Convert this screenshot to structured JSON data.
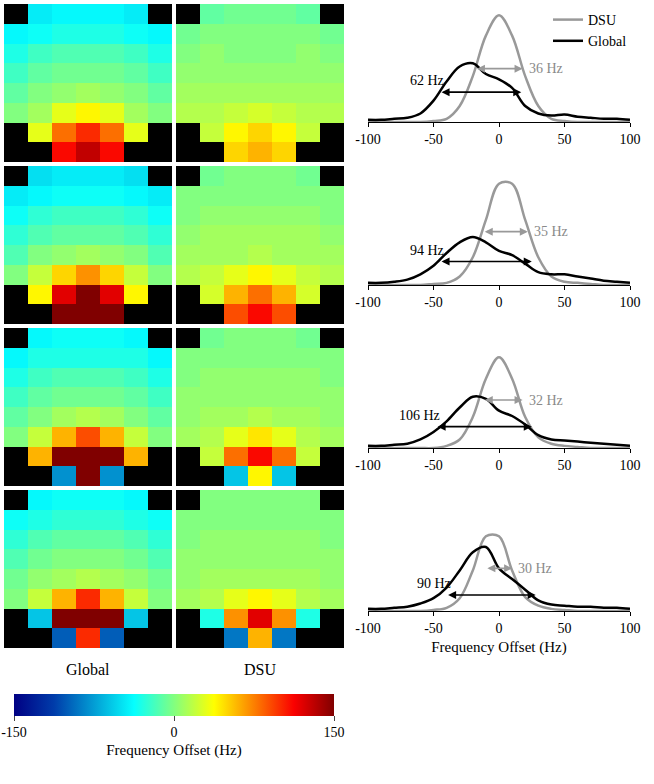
{
  "chart_data": [
    {
      "type": "heatmap",
      "columns": [
        "Global",
        "DSU"
      ],
      "tick_labels": false,
      "colorbar": {
        "title": "Frequency Offset (Hz)",
        "range": [
          -150,
          150
        ],
        "ticks": [
          -150,
          0,
          150
        ]
      },
      "cells": [
        [
          [
            [
              null,
              -45,
              -40,
              -40,
              -40,
              -45,
              null
            ],
            [
              -40,
              -35,
              -30,
              -30,
              -30,
              -35,
              -40
            ],
            [
              -30,
              -20,
              -15,
              -15,
              -15,
              -20,
              -30
            ],
            [
              -20,
              -10,
              -5,
              -5,
              -5,
              -10,
              -20
            ],
            [
              -10,
              0,
              5,
              10,
              5,
              0,
              -10
            ],
            [
              0,
              10,
              30,
              40,
              30,
              10,
              0
            ],
            [
              null,
              30,
              80,
              100,
              80,
              30,
              null
            ],
            [
              null,
              null,
              110,
              130,
              110,
              null,
              null
            ]
          ],
          [
            [
              null,
              -10,
              -5,
              -5,
              -5,
              -10,
              null
            ],
            [
              -5,
              0,
              0,
              0,
              0,
              0,
              -5
            ],
            [
              0,
              5,
              0,
              0,
              0,
              5,
              0
            ],
            [
              5,
              5,
              5,
              5,
              5,
              5,
              5
            ],
            [
              10,
              10,
              10,
              10,
              10,
              10,
              10
            ],
            [
              15,
              15,
              20,
              25,
              20,
              15,
              15
            ],
            [
              null,
              20,
              40,
              50,
              40,
              20,
              null
            ],
            [
              null,
              null,
              50,
              60,
              50,
              null,
              null
            ]
          ]
        ],
        [
          [
            [
              null,
              -50,
              -45,
              -45,
              -45,
              -50,
              null
            ],
            [
              -45,
              -40,
              -35,
              -35,
              -35,
              -40,
              -45
            ],
            [
              -35,
              -25,
              -20,
              -20,
              -20,
              -25,
              -35
            ],
            [
              -25,
              -15,
              -10,
              -10,
              -10,
              -15,
              -25
            ],
            [
              -15,
              0,
              5,
              10,
              5,
              0,
              -15
            ],
            [
              0,
              20,
              50,
              70,
              50,
              20,
              0
            ],
            [
              null,
              40,
              120,
              150,
              120,
              40,
              null
            ],
            [
              null,
              null,
              150,
              150,
              150,
              null,
              null
            ]
          ],
          [
            [
              null,
              -5,
              0,
              0,
              0,
              -5,
              null
            ],
            [
              0,
              0,
              0,
              0,
              0,
              0,
              0
            ],
            [
              0,
              5,
              5,
              5,
              5,
              5,
              0
            ],
            [
              5,
              10,
              10,
              10,
              10,
              10,
              5
            ],
            [
              10,
              10,
              10,
              15,
              10,
              10,
              10
            ],
            [
              15,
              20,
              30,
              40,
              30,
              20,
              15
            ],
            [
              null,
              25,
              60,
              80,
              60,
              25,
              null
            ],
            [
              null,
              null,
              90,
              110,
              90,
              null,
              null
            ]
          ]
        ],
        [
          [
            [
              null,
              -40,
              -35,
              -35,
              -35,
              -40,
              null
            ],
            [
              -40,
              -30,
              -30,
              -30,
              -30,
              -30,
              -40
            ],
            [
              -30,
              -20,
              -15,
              -15,
              -15,
              -20,
              -30
            ],
            [
              -20,
              -10,
              -5,
              -5,
              -5,
              -10,
              -20
            ],
            [
              -10,
              0,
              10,
              15,
              10,
              0,
              -10
            ],
            [
              0,
              20,
              60,
              90,
              60,
              20,
              0
            ],
            [
              null,
              60,
              150,
              150,
              150,
              60,
              null
            ],
            [
              null,
              null,
              -80,
              150,
              -80,
              null,
              null
            ]
          ],
          [
            [
              null,
              -5,
              0,
              0,
              0,
              -5,
              null
            ],
            [
              0,
              0,
              0,
              0,
              0,
              0,
              0
            ],
            [
              0,
              5,
              5,
              5,
              5,
              5,
              0
            ],
            [
              5,
              5,
              5,
              5,
              5,
              5,
              5
            ],
            [
              5,
              10,
              10,
              15,
              10,
              10,
              5
            ],
            [
              10,
              15,
              30,
              45,
              30,
              15,
              10
            ],
            [
              null,
              20,
              80,
              110,
              80,
              20,
              null
            ],
            [
              null,
              null,
              -60,
              40,
              -60,
              null,
              null
            ]
          ]
        ],
        [
          [
            [
              null,
              -40,
              -35,
              -35,
              -35,
              -40,
              null
            ],
            [
              -35,
              -30,
              -25,
              -25,
              -25,
              -30,
              -35
            ],
            [
              -25,
              -15,
              -10,
              -10,
              -10,
              -15,
              -25
            ],
            [
              -15,
              -5,
              0,
              0,
              0,
              -5,
              -15
            ],
            [
              -5,
              5,
              10,
              15,
              10,
              5,
              -5
            ],
            [
              0,
              20,
              60,
              100,
              60,
              20,
              0
            ],
            [
              null,
              -60,
              150,
              150,
              150,
              -60,
              null
            ],
            [
              null,
              null,
              -100,
              100,
              -100,
              null,
              null
            ]
          ],
          [
            [
              null,
              0,
              0,
              0,
              0,
              0,
              null
            ],
            [
              0,
              0,
              0,
              0,
              0,
              0,
              0
            ],
            [
              0,
              5,
              5,
              5,
              5,
              5,
              0
            ],
            [
              5,
              5,
              5,
              5,
              5,
              5,
              5
            ],
            [
              5,
              10,
              10,
              10,
              10,
              10,
              5
            ],
            [
              10,
              15,
              30,
              40,
              30,
              15,
              10
            ],
            [
              null,
              -30,
              70,
              120,
              70,
              -30,
              null
            ],
            [
              null,
              null,
              -90,
              60,
              -90,
              null,
              null
            ]
          ]
        ]
      ]
    },
    {
      "type": "line",
      "xlabel": "Frequency Offset (Hz)",
      "x": [
        -100,
        -90,
        -80,
        -70,
        -60,
        -50,
        -40,
        -30,
        -20,
        -10,
        0,
        10,
        20,
        30,
        40,
        50,
        60,
        70,
        80,
        90,
        100
      ],
      "xlim": [
        -100,
        100
      ],
      "xticks": [
        -100,
        -50,
        0,
        50,
        100
      ],
      "ylim": [
        0,
        1.05
      ],
      "tick_labels": "x",
      "legend": "top right",
      "panels": [
        {
          "series": [
            {
              "name": "DSU",
              "color": "#999999",
              "values": [
                0,
                0,
                0,
                0,
                0,
                0.01,
                0.03,
                0.15,
                0.43,
                0.81,
                1,
                0.81,
                0.43,
                0.15,
                0.03,
                0.01,
                0,
                0,
                0,
                0,
                0
              ]
            },
            {
              "name": "Global",
              "color": "#000000",
              "values": [
                0.02,
                0.02,
                0.03,
                0.04,
                0.08,
                0.2,
                0.38,
                0.52,
                0.55,
                0.45,
                0.4,
                0.32,
                0.15,
                0.08,
                0.06,
                0.07,
                0.05,
                0.04,
                0.03,
                0.03,
                0.02
              ]
            }
          ],
          "annotations": [
            {
              "series": "Global",
              "text": "62 Hz",
              "x0": -45,
              "x1": 17,
              "y": 0.28
            },
            {
              "series": "DSU",
              "text": "36 Hz",
              "x0": -18,
              "x1": 18,
              "y": 0.5
            }
          ]
        },
        {
          "series": [
            {
              "name": "DSU",
              "color": "#999999",
              "values": [
                0,
                0,
                0,
                0,
                0,
                0.01,
                0.02,
                0.08,
                0.26,
                0.61,
                0.95,
                0.95,
                0.61,
                0.26,
                0.08,
                0.03,
                0.02,
                0.01,
                0,
                0,
                0
              ]
            },
            {
              "name": "Global",
              "color": "#000000",
              "values": [
                0.02,
                0.02,
                0.03,
                0.05,
                0.1,
                0.18,
                0.3,
                0.4,
                0.45,
                0.4,
                0.32,
                0.28,
                0.2,
                0.12,
                0.1,
                0.1,
                0.08,
                0.06,
                0.04,
                0.03,
                0.02
              ]
            }
          ],
          "annotations": [
            {
              "series": "Global",
              "text": "94 Hz",
              "x0": -45,
              "x1": 25,
              "y": 0.22
            },
            {
              "series": "DSU",
              "text": "35 Hz",
              "x0": -12,
              "x1": 22,
              "y": 0.5
            }
          ]
        },
        {
          "series": [
            {
              "name": "DSU",
              "color": "#999999",
              "values": [
                0,
                0,
                0,
                0,
                0,
                0,
                0.02,
                0.08,
                0.29,
                0.65,
                0.85,
                0.65,
                0.29,
                0.1,
                0.04,
                0.02,
                0.01,
                0,
                0,
                0,
                0
              ]
            },
            {
              "name": "Global",
              "color": "#000000",
              "values": [
                0.02,
                0.02,
                0.03,
                0.04,
                0.08,
                0.15,
                0.25,
                0.38,
                0.48,
                0.46,
                0.35,
                0.3,
                0.22,
                0.12,
                0.08,
                0.07,
                0.06,
                0.05,
                0.04,
                0.03,
                0.02
              ]
            }
          ],
          "annotations": [
            {
              "series": "Global",
              "text": "106 Hz",
              "x0": -48,
              "x1": 25,
              "y": 0.2
            },
            {
              "series": "DSU",
              "text": "32 Hz",
              "x0": -12,
              "x1": 18,
              "y": 0.45
            }
          ]
        },
        {
          "series": [
            {
              "name": "DSU",
              "color": "#999999",
              "values": [
                0,
                0,
                0,
                0,
                0,
                0.01,
                0.03,
                0.12,
                0.38,
                0.7,
                0.7,
                0.38,
                0.13,
                0.05,
                0.02,
                0.01,
                0,
                0,
                0,
                0,
                0
              ]
            },
            {
              "name": "Global",
              "color": "#000000",
              "values": [
                0.02,
                0.02,
                0.03,
                0.04,
                0.07,
                0.12,
                0.22,
                0.38,
                0.55,
                0.6,
                0.4,
                0.3,
                0.2,
                0.1,
                0.06,
                0.05,
                0.04,
                0.04,
                0.03,
                0.03,
                0.02
              ]
            }
          ],
          "annotations": [
            {
              "series": "Global",
              "text": "90 Hz",
              "x0": -40,
              "x1": 28,
              "y": 0.15
            },
            {
              "series": "DSU",
              "text": "30 Hz",
              "x0": -10,
              "x1": 10,
              "y": 0.4
            }
          ]
        }
      ]
    }
  ]
}
